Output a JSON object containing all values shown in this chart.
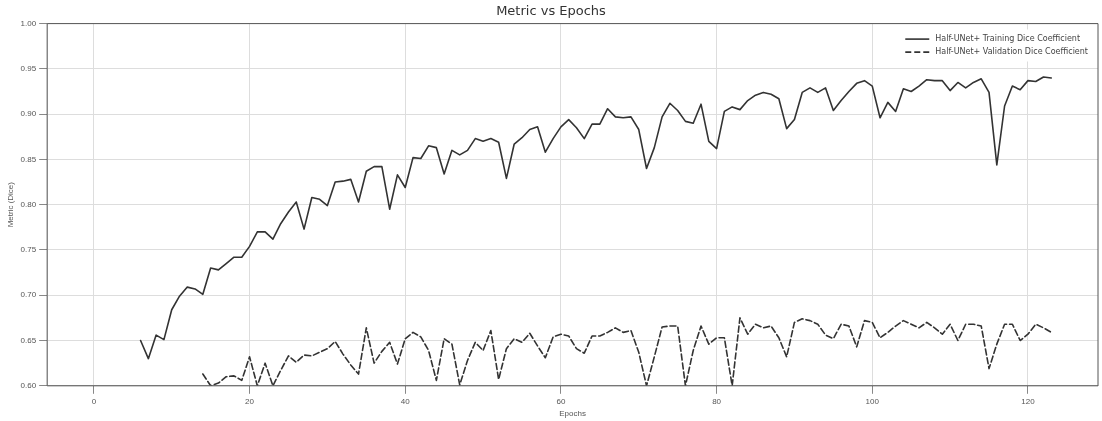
{
  "chart_data": {
    "type": "line",
    "title": "Metric vs Epochs",
    "xlabel": "Epochs",
    "ylabel": "Metric (Dice)",
    "x": [
      6,
      7,
      8,
      9,
      10,
      11,
      12,
      13,
      14,
      15,
      16,
      17,
      18,
      19,
      20,
      21,
      22,
      23,
      24,
      25,
      26,
      27,
      28,
      29,
      30,
      31,
      32,
      33,
      34,
      35,
      36,
      37,
      38,
      39,
      40,
      41,
      42,
      43,
      44,
      45,
      46,
      47,
      48,
      49,
      50,
      51,
      52,
      53,
      54,
      55,
      56,
      57,
      58,
      59,
      60,
      61,
      62,
      63,
      64,
      65,
      66,
      67,
      68,
      69,
      70,
      71,
      72,
      73,
      74,
      75,
      76,
      77,
      78,
      79,
      80,
      81,
      82,
      83,
      84,
      85,
      86,
      87,
      88,
      89,
      90,
      91,
      92,
      93,
      94,
      95,
      96,
      97,
      98,
      99,
      100,
      101,
      102,
      103,
      104,
      105,
      106,
      107,
      108,
      109,
      110,
      111,
      112,
      113,
      114,
      115,
      116,
      117,
      118,
      119,
      120,
      121,
      122,
      123
    ],
    "series": [
      {
        "name": "Half-UNet+ Training Dice Coefficient",
        "color": "#333333",
        "line_style": "solid",
        "values": [
          0.65,
          0.63,
          0.656,
          0.651,
          0.684,
          0.699,
          0.709,
          0.707,
          0.701,
          0.73,
          0.728,
          0.735,
          0.742,
          0.742,
          0.754,
          0.77,
          0.77,
          0.762,
          0.779,
          0.792,
          0.803,
          0.773,
          0.808,
          0.806,
          0.799,
          0.825,
          0.826,
          0.828,
          0.803,
          0.837,
          0.842,
          0.842,
          0.795,
          0.833,
          0.819,
          0.852,
          0.851,
          0.865,
          0.863,
          0.834,
          0.86,
          0.855,
          0.86,
          0.873,
          0.87,
          0.873,
          0.869,
          0.829,
          0.867,
          0.874,
          0.883,
          0.886,
          0.858,
          0.873,
          0.886,
          0.894,
          0.885,
          0.873,
          0.889,
          0.889,
          0.906,
          0.897,
          0.896,
          0.897,
          0.883,
          0.84,
          0.863,
          0.897,
          0.912,
          0.904,
          0.892,
          0.89,
          0.911,
          0.87,
          0.862,
          0.903,
          0.908,
          0.905,
          0.915,
          0.921,
          0.924,
          0.922,
          0.917,
          0.884,
          0.894,
          0.924,
          0.929,
          0.924,
          0.929,
          0.904,
          0.915,
          0.925,
          0.934,
          0.937,
          0.931,
          0.896,
          0.913,
          0.903,
          0.928,
          0.925,
          0.931,
          0.938,
          0.937,
          0.937,
          0.926,
          0.935,
          0.929,
          0.935,
          0.939,
          0.924,
          0.844,
          0.909,
          0.931,
          0.927,
          0.937,
          0.936,
          0.941,
          0.94
        ]
      },
      {
        "name": "Half-UNet+ Validation Dice Coefficient",
        "color": "#333333",
        "line_style": "dashed",
        "values": [
          null,
          null,
          null,
          null,
          null,
          null,
          null,
          null,
          0.613,
          0.6,
          0.603,
          0.61,
          0.611,
          0.606,
          0.632,
          0.6,
          0.625,
          0.6,
          0.617,
          0.633,
          0.626,
          0.634,
          0.633,
          0.637,
          0.641,
          0.649,
          0.635,
          0.623,
          0.613,
          0.664,
          0.625,
          0.638,
          0.648,
          0.624,
          0.652,
          0.659,
          0.654,
          0.639,
          0.606,
          0.652,
          0.646,
          0.601,
          0.628,
          0.648,
          0.639,
          0.661,
          0.607,
          0.641,
          0.652,
          0.648,
          0.658,
          0.644,
          0.631,
          0.654,
          0.657,
          0.655,
          0.641,
          0.636,
          0.655,
          0.655,
          0.659,
          0.664,
          0.659,
          0.661,
          0.637,
          0.6,
          0.632,
          0.665,
          0.666,
          0.666,
          0.6,
          0.639,
          0.666,
          0.646,
          0.653,
          0.653,
          0.6,
          0.675,
          0.657,
          0.668,
          0.664,
          0.666,
          0.653,
          0.632,
          0.67,
          0.674,
          0.672,
          0.668,
          0.656,
          0.652,
          0.668,
          0.666,
          0.643,
          0.672,
          0.67,
          0.653,
          0.659,
          0.666,
          0.672,
          0.668,
          0.664,
          0.67,
          0.664,
          0.657,
          0.668,
          0.65,
          0.668,
          0.668,
          0.666,
          0.619,
          0.646,
          0.668,
          0.668,
          0.65,
          0.657,
          0.668,
          0.664,
          0.659
        ]
      }
    ],
    "xlim": [
      -6,
      129
    ],
    "xticks": [
      0,
      20,
      40,
      60,
      80,
      100,
      120
    ],
    "ylim": [
      0.6,
      1.0
    ],
    "yticks": [
      {
        "value": 0.6,
        "label": "0.60"
      },
      {
        "value": 0.65,
        "label": "0.65"
      },
      {
        "value": 0.7,
        "label": "0.70"
      },
      {
        "value": 0.75,
        "label": "0.75"
      },
      {
        "value": 0.8,
        "label": "0.80"
      },
      {
        "value": 0.85,
        "label": "0.85"
      },
      {
        "value": 0.9,
        "label": "0.90"
      },
      {
        "value": 0.95,
        "label": "0.95"
      },
      {
        "value": 1.0,
        "label": "1.00"
      }
    ],
    "grid": true,
    "legend": "top right",
    "marker": "none"
  }
}
